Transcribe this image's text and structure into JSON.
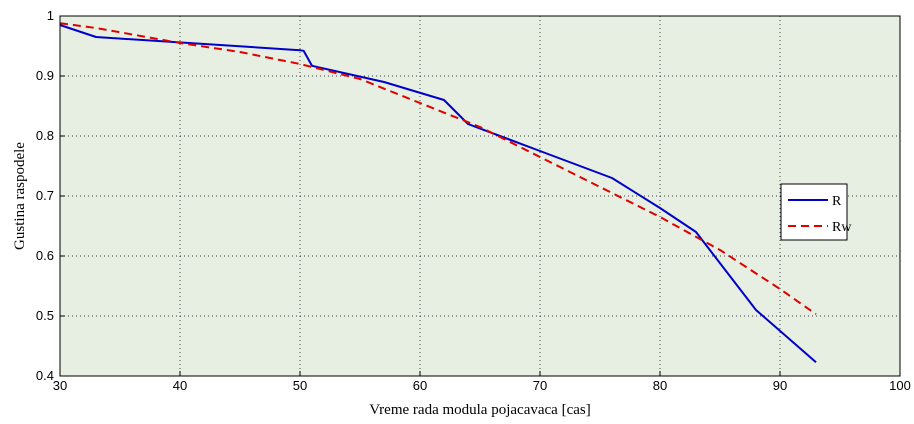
{
  "chart_data": {
    "type": "line",
    "xlabel": "Vreme rada modula pojacavaca [cas]",
    "ylabel": "Gustina raspodele",
    "xlim": [
      30,
      100
    ],
    "ylim": [
      0.4,
      1
    ],
    "xticks": [
      30,
      40,
      50,
      60,
      70,
      80,
      90,
      100
    ],
    "yticks": [
      0.4,
      0.5,
      0.6,
      0.7,
      0.8,
      0.9,
      1
    ],
    "ytick_labels": [
      "0.4",
      "0.5",
      "0.6",
      "0.7",
      "0.8",
      "0.9",
      "1"
    ],
    "grid": true,
    "legend_position": "right",
    "colors": {
      "plot_bg": "#e6efe2",
      "R": "#0000c8",
      "Rw": "#e00000"
    },
    "series": [
      {
        "name": "R",
        "style": "solid",
        "x": [
          30,
          33,
          50,
          50.3,
          51,
          57,
          62,
          64,
          70,
          76,
          80,
          83,
          88,
          93
        ],
        "y": [
          0.985,
          0.965,
          0.943,
          0.942,
          0.917,
          0.89,
          0.86,
          0.82,
          0.775,
          0.73,
          0.68,
          0.64,
          0.51,
          0.423
        ]
      },
      {
        "name": "Rw",
        "style": "dashed",
        "x": [
          30,
          33,
          40,
          45,
          50,
          55,
          60,
          65,
          70,
          75,
          80,
          85,
          90,
          93
        ],
        "y": [
          0.988,
          0.98,
          0.955,
          0.94,
          0.92,
          0.895,
          0.855,
          0.815,
          0.765,
          0.715,
          0.665,
          0.61,
          0.545,
          0.503
        ]
      }
    ]
  }
}
